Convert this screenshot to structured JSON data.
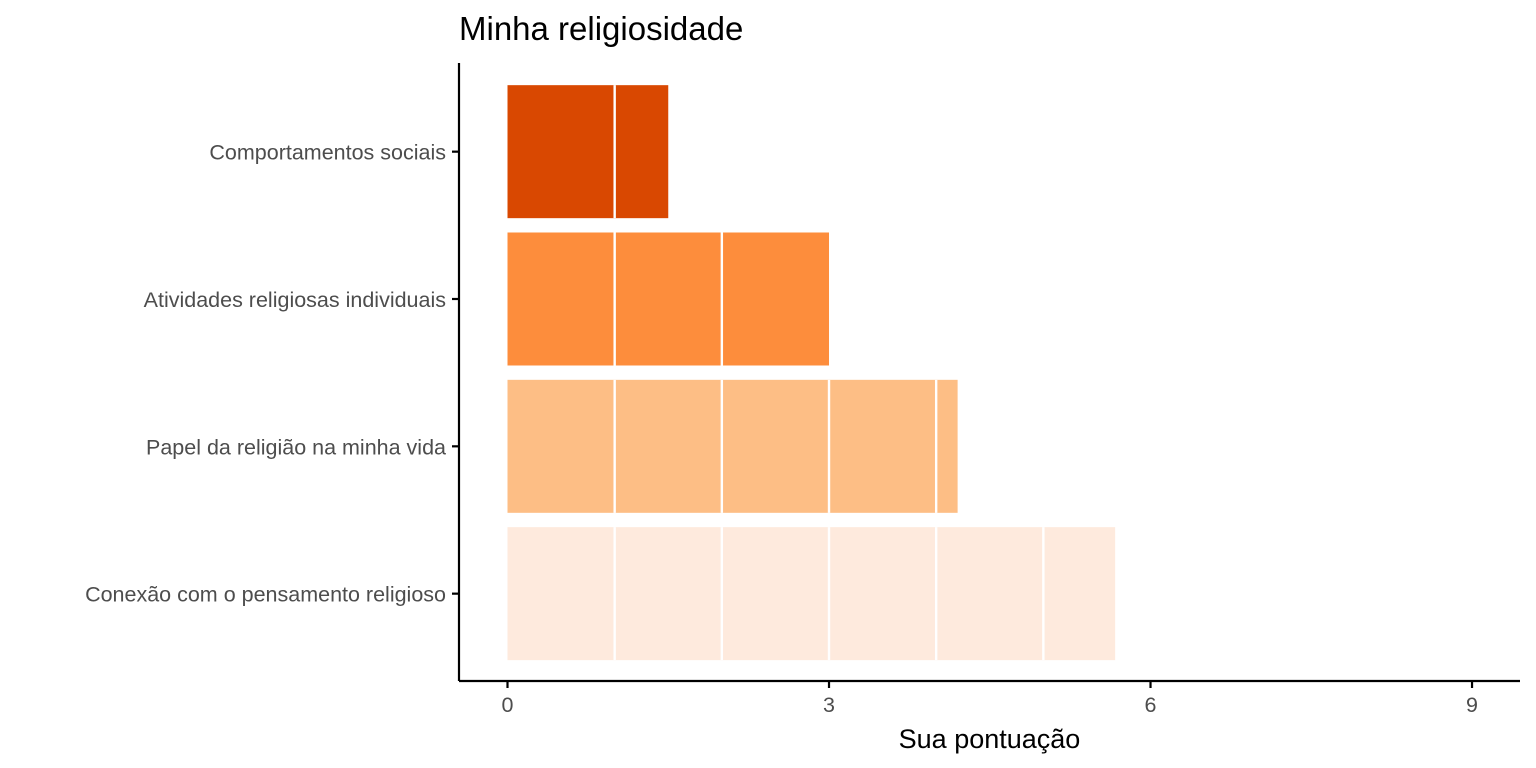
{
  "chart_data": {
    "type": "bar",
    "orientation": "horizontal",
    "title": "Minha religiosidade",
    "xlabel": "Sua pontuação",
    "ylabel": "",
    "xlim": [
      0,
      9
    ],
    "x_ticks": [
      0,
      3,
      6,
      9
    ],
    "x_tick_labels": [
      "0",
      "3",
      "6",
      "9"
    ],
    "categories": [
      "Comportamentos sociais",
      "Atividades religiosas individuais",
      "Papel da religião na minha vida",
      "Conexão com o pensamento religioso"
    ],
    "values": [
      1.5,
      3.0,
      4.2,
      5.67
    ],
    "colors": [
      "#d94801",
      "#fd8d3c",
      "#fdbe85",
      "#feeadd"
    ],
    "segment_divider_color": "#ffffff",
    "segment_unit": 1,
    "grid": false,
    "legend": "none"
  }
}
